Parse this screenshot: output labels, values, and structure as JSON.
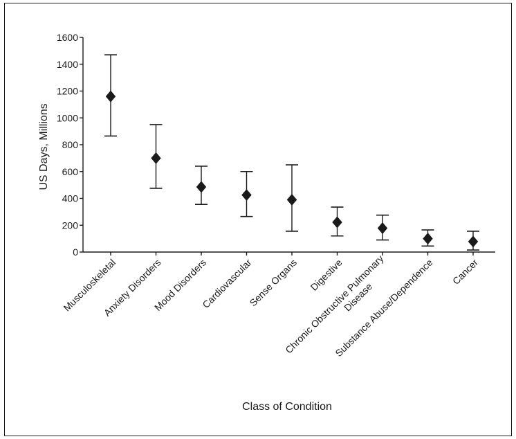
{
  "chart_data": {
    "type": "scatter",
    "title": "",
    "xlabel": "Class of Condition",
    "ylabel": "US Days, Millions",
    "ylim": [
      0,
      1600
    ],
    "yticks": [
      "0",
      "200",
      "400",
      "600",
      "800",
      "1000",
      "1200",
      "1400",
      "1600"
    ],
    "categories": [
      [
        "Musculoskeletal"
      ],
      [
        "Anxiety Disorders"
      ],
      [
        "Mood Disorders"
      ],
      [
        "Cardiovascular"
      ],
      [
        "Sense Organs"
      ],
      [
        "Digestive"
      ],
      [
        "Chronic Obstructive Pulmonary",
        "Disease"
      ],
      [
        "Substance Abuse/Dependence"
      ],
      [
        "Cancer"
      ]
    ],
    "values": [
      1160,
      700,
      485,
      425,
      390,
      222,
      178,
      100,
      78
    ],
    "error_low": [
      865,
      475,
      355,
      265,
      155,
      120,
      90,
      45,
      15
    ],
    "error_high": [
      1470,
      950,
      640,
      600,
      650,
      335,
      275,
      165,
      155
    ],
    "marker": "diamond",
    "grid": false
  }
}
